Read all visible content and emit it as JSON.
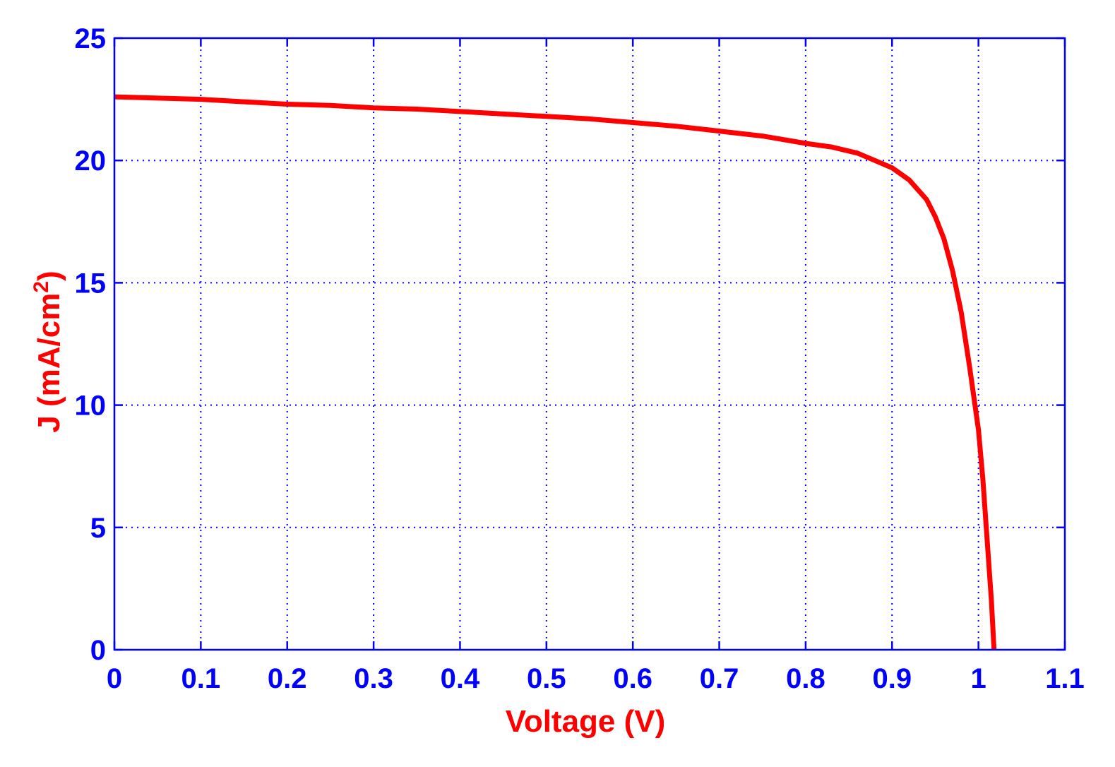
{
  "chart_data": {
    "type": "line",
    "xlabel": "Voltage (V)",
    "ylabel_main": "J (mA/cm",
    "ylabel_sup": "2",
    "ylabel_close": ")",
    "xlim": [
      0,
      1.1
    ],
    "ylim": [
      0,
      25
    ],
    "xticks": [
      0,
      0.1,
      0.2,
      0.3,
      0.4,
      0.5,
      0.6,
      0.7,
      0.8,
      0.9,
      1,
      1.1
    ],
    "xtick_labels": [
      "0",
      "0.1",
      "0.2",
      "0.3",
      "0.4",
      "0.5",
      "0.6",
      "0.7",
      "0.8",
      "0.9",
      "1",
      "1.1"
    ],
    "yticks": [
      0,
      5,
      10,
      15,
      20,
      25
    ],
    "ytick_labels": [
      "0",
      "5",
      "10",
      "15",
      "20",
      "25"
    ],
    "grid": true,
    "colors": {
      "axis": "#0000ff",
      "grid": "#0000ff",
      "line": "#ff0000",
      "label": "#ff0000"
    },
    "series": [
      {
        "x": [
          0,
          0.05,
          0.1,
          0.15,
          0.2,
          0.25,
          0.3,
          0.35,
          0.4,
          0.45,
          0.5,
          0.55,
          0.6,
          0.65,
          0.7,
          0.75,
          0.8,
          0.83,
          0.86,
          0.88,
          0.9,
          0.92,
          0.94,
          0.95,
          0.96,
          0.97,
          0.98,
          0.99,
          1.0,
          1.005,
          1.01,
          1.015,
          1.018
        ],
        "y": [
          22.6,
          22.55,
          22.5,
          22.4,
          22.3,
          22.25,
          22.15,
          22.1,
          22.0,
          21.9,
          21.8,
          21.7,
          21.55,
          21.4,
          21.2,
          21.0,
          20.7,
          20.55,
          20.3,
          20.0,
          19.7,
          19.2,
          18.4,
          17.7,
          16.8,
          15.5,
          13.8,
          11.5,
          9.0,
          7.0,
          4.5,
          2.0,
          0
        ]
      }
    ]
  }
}
